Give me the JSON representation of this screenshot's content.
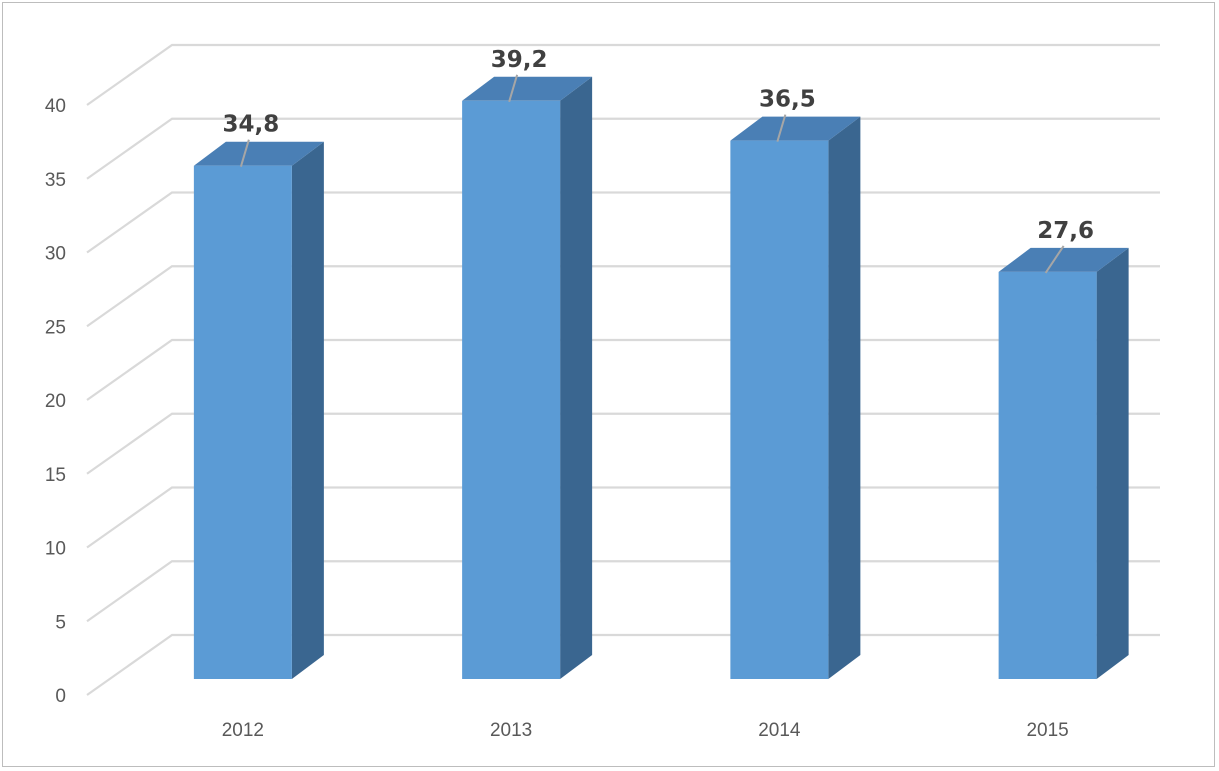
{
  "chart_data": {
    "type": "bar",
    "style": "3d-column",
    "title": "",
    "xlabel": "",
    "ylabel": "",
    "categories": [
      "2012",
      "2013",
      "2014",
      "2015"
    ],
    "values": [
      34.8,
      39.2,
      36.5,
      27.6
    ],
    "data_labels": [
      "34,8",
      "39,2",
      "36,5",
      "27,6"
    ],
    "ylim": [
      0,
      40
    ],
    "y_ticks": [
      0,
      5,
      10,
      15,
      20,
      25,
      30,
      35,
      40
    ],
    "grid": true,
    "legend": "none",
    "colors": {
      "bar_front": "#5b9bd5",
      "bar_side": "#3a6690",
      "bar_top": "#4a7fb5",
      "grid": "#d9d9d9",
      "axis_text": "#595959",
      "label_text": "#404040"
    }
  }
}
